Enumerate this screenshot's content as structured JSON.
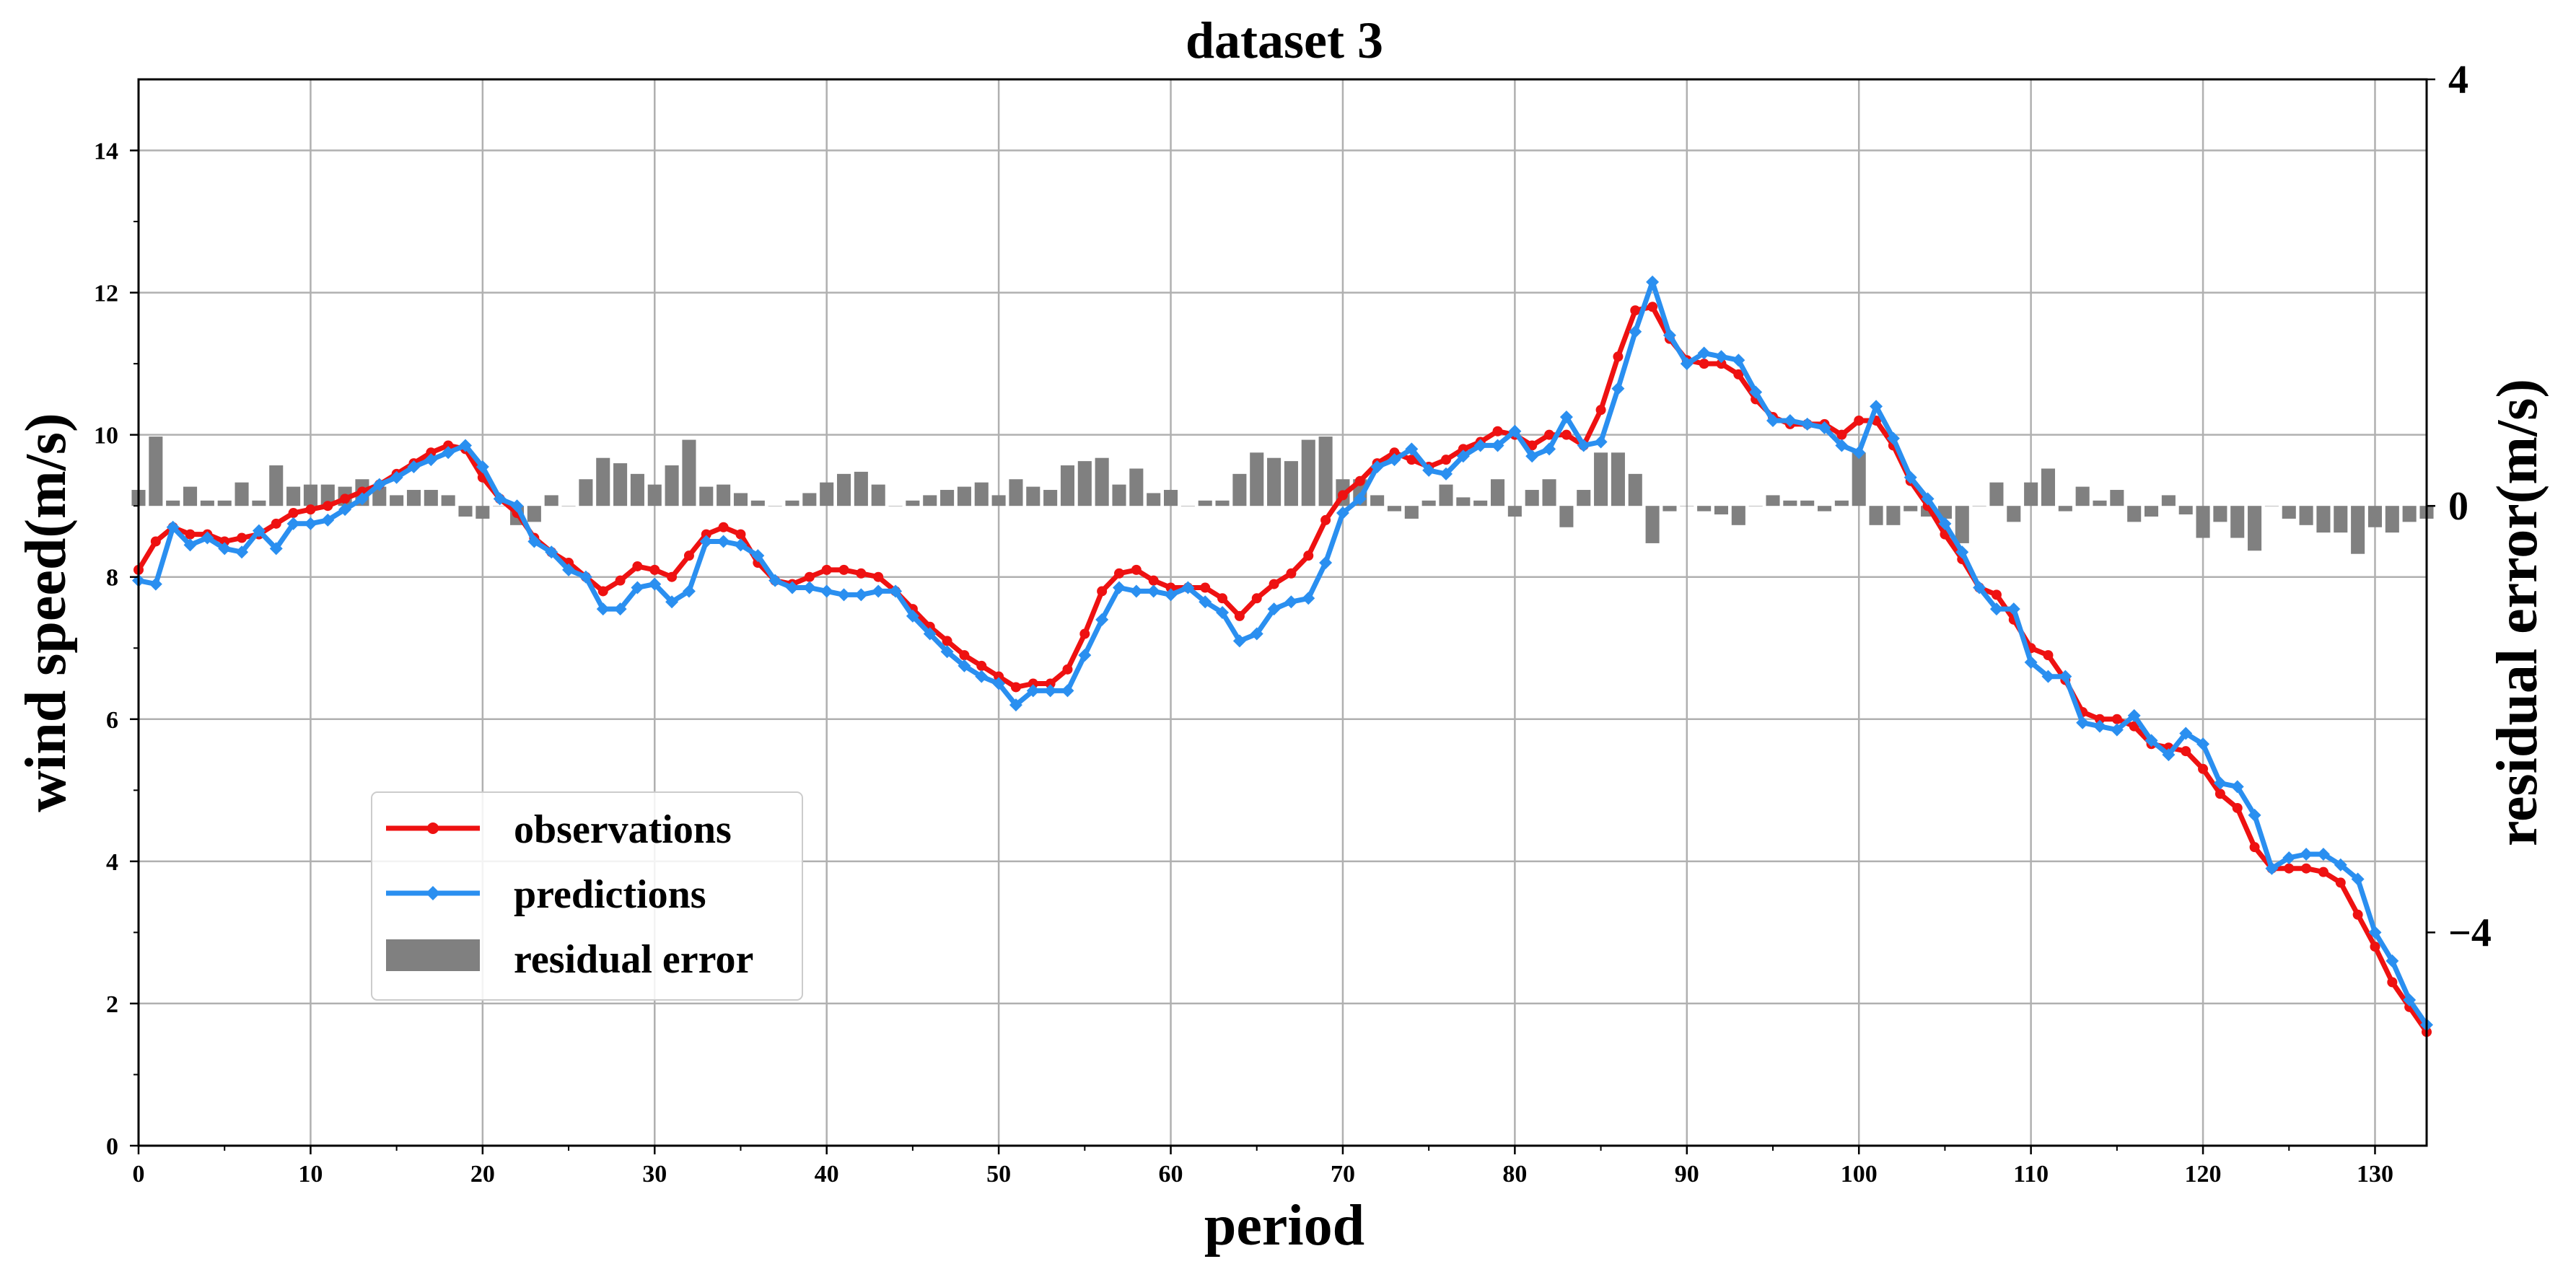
{
  "chart_data": {
    "type": "line",
    "title": "dataset 3",
    "xlabel": "period",
    "ylabel": "wind speed(m/s)",
    "y2label": "residual error(m/s)",
    "xlim": [
      0,
      133
    ],
    "ylim": [
      0,
      15
    ],
    "y2lim": [
      -6,
      4
    ],
    "xticks": [
      "0",
      "10",
      "20",
      "30",
      "40",
      "50",
      "60",
      "70",
      "80",
      "90",
      "100",
      "110",
      "120",
      "130"
    ],
    "yticks": [
      "0",
      "2",
      "4",
      "6",
      "8",
      "10",
      "12",
      "14"
    ],
    "y2ticks": [
      "−4",
      "0",
      "4"
    ],
    "grid": true,
    "legend_position": "lower-left",
    "x": [
      0,
      1,
      2,
      3,
      4,
      5,
      6,
      7,
      8,
      9,
      10,
      11,
      12,
      13,
      14,
      15,
      16,
      17,
      18,
      19,
      20,
      21,
      22,
      23,
      24,
      25,
      26,
      27,
      28,
      29,
      30,
      31,
      32,
      33,
      34,
      35,
      36,
      37,
      38,
      39,
      40,
      41,
      42,
      43,
      44,
      45,
      46,
      47,
      48,
      49,
      50,
      51,
      52,
      53,
      54,
      55,
      56,
      57,
      58,
      59,
      60,
      61,
      62,
      63,
      64,
      65,
      66,
      67,
      68,
      69,
      70,
      71,
      72,
      73,
      74,
      75,
      76,
      77,
      78,
      79,
      80,
      81,
      82,
      83,
      84,
      85,
      86,
      87,
      88,
      89,
      90,
      91,
      92,
      93,
      94,
      95,
      96,
      97,
      98,
      99,
      100,
      101,
      102,
      103,
      104,
      105,
      106,
      107,
      108,
      109,
      110,
      111,
      112,
      113,
      114,
      115,
      116,
      117,
      118,
      119,
      120,
      121,
      122,
      123,
      124,
      125,
      126,
      127,
      128,
      129,
      130,
      131,
      132,
      133
    ],
    "series": [
      {
        "name": "observations",
        "color": "#ee1111",
        "marker": "circle",
        "values": [
          8.1,
          8.5,
          8.7,
          8.6,
          8.6,
          8.5,
          8.55,
          8.6,
          8.75,
          8.9,
          8.95,
          9.0,
          9.1,
          9.2,
          9.3,
          9.45,
          9.6,
          9.75,
          9.85,
          9.8,
          9.4,
          9.1,
          8.9,
          8.55,
          8.35,
          8.2,
          8.0,
          7.8,
          7.95,
          8.15,
          8.1,
          8.0,
          8.3,
          8.6,
          8.7,
          8.6,
          8.2,
          7.95,
          7.9,
          8.0,
          8.1,
          8.1,
          8.05,
          8.0,
          7.8,
          7.55,
          7.3,
          7.1,
          6.9,
          6.75,
          6.6,
          6.45,
          6.5,
          6.5,
          6.7,
          7.2,
          7.8,
          8.05,
          8.1,
          7.95,
          7.85,
          7.85,
          7.85,
          7.7,
          7.45,
          7.7,
          7.9,
          8.05,
          8.3,
          8.8,
          9.15,
          9.35,
          9.6,
          9.75,
          9.65,
          9.55,
          9.65,
          9.8,
          9.9,
          10.05,
          10.0,
          9.85,
          10.0,
          10.0,
          9.85,
          10.35,
          11.1,
          11.75,
          11.8,
          11.35,
          11.05,
          11.0,
          11.0,
          10.85,
          10.5,
          10.25,
          10.15,
          10.15,
          10.15,
          10.0,
          10.2,
          10.2,
          9.85,
          9.35,
          9.0,
          8.6,
          8.25,
          7.85,
          7.75,
          7.4,
          7.0,
          6.9,
          6.55,
          6.1,
          6.0,
          6.0,
          5.9,
          5.65,
          5.6,
          5.55,
          5.3,
          4.95,
          4.75,
          4.2,
          3.9,
          3.9,
          3.9,
          3.85,
          3.7,
          3.25,
          2.8,
          2.3,
          1.95,
          1.6
        ]
      },
      {
        "name": "predictions",
        "color": "#2a8ff0",
        "marker": "diamond",
        "values": [
          7.95,
          7.9,
          8.7,
          8.45,
          8.55,
          8.4,
          8.35,
          8.65,
          8.4,
          8.75,
          8.75,
          8.8,
          8.95,
          9.1,
          9.3,
          9.4,
          9.55,
          9.65,
          9.75,
          9.85,
          9.55,
          9.1,
          9.0,
          8.5,
          8.35,
          8.1,
          8.0,
          7.55,
          7.55,
          7.85,
          7.9,
          7.65,
          7.8,
          8.5,
          8.5,
          8.45,
          8.3,
          7.95,
          7.85,
          7.85,
          7.8,
          7.75,
          7.75,
          7.8,
          7.8,
          7.45,
          7.2,
          6.95,
          6.75,
          6.6,
          6.5,
          6.2,
          6.4,
          6.4,
          6.4,
          6.9,
          7.4,
          7.85,
          7.8,
          7.8,
          7.75,
          7.85,
          7.65,
          7.5,
          7.1,
          7.2,
          7.55,
          7.65,
          7.7,
          8.2,
          8.9,
          9.1,
          9.55,
          9.65,
          9.8,
          9.5,
          9.45,
          9.7,
          9.85,
          9.85,
          10.05,
          9.7,
          9.8,
          10.25,
          9.85,
          9.9,
          10.65,
          11.45,
          12.15,
          11.4,
          11.0,
          11.15,
          11.1,
          11.05,
          10.6,
          10.2,
          10.2,
          10.15,
          10.1,
          9.85,
          9.75,
          10.4,
          9.95,
          9.4,
          9.1,
          8.75,
          8.35,
          7.85,
          7.55,
          7.55,
          6.8,
          6.6,
          6.6,
          5.95,
          5.9,
          5.85,
          6.05,
          5.7,
          5.5,
          5.8,
          5.65,
          5.1,
          5.05,
          4.65,
          3.9,
          4.05,
          4.1,
          4.1,
          3.95,
          3.75,
          3.0,
          2.6,
          2.05,
          1.7
        ]
      },
      {
        "name": "residual error",
        "color": "#808080",
        "type": "bar",
        "axis": "right",
        "values": [
          0.15,
          0.65,
          0.05,
          0.18,
          0.05,
          0.05,
          0.22,
          0.05,
          0.38,
          0.18,
          0.2,
          0.2,
          0.18,
          0.25,
          0.18,
          0.1,
          0.15,
          0.15,
          0.1,
          -0.1,
          -0.12,
          0.0,
          -0.18,
          -0.15,
          0.1,
          0.0,
          0.25,
          0.45,
          0.4,
          0.3,
          0.2,
          0.38,
          0.62,
          0.18,
          0.2,
          0.12,
          0.05,
          0.0,
          0.05,
          0.12,
          0.22,
          0.3,
          0.32,
          0.2,
          0.0,
          0.05,
          0.1,
          0.15,
          0.18,
          0.22,
          0.1,
          0.25,
          0.18,
          0.15,
          0.38,
          0.42,
          0.45,
          0.2,
          0.35,
          0.12,
          0.15,
          0.0,
          0.05,
          0.05,
          0.3,
          0.5,
          0.45,
          0.42,
          0.62,
          0.65,
          0.25,
          0.25,
          0.1,
          -0.05,
          -0.12,
          0.05,
          0.2,
          0.08,
          0.05,
          0.25,
          -0.1,
          0.15,
          0.25,
          -0.2,
          0.15,
          0.5,
          0.5,
          0.3,
          -0.35,
          -0.05,
          0.0,
          -0.05,
          -0.08,
          -0.18,
          0.0,
          0.1,
          0.05,
          0.05,
          -0.05,
          0.05,
          0.5,
          -0.18,
          -0.18,
          -0.05,
          -0.1,
          -0.12,
          -0.35,
          0.0,
          0.22,
          -0.15,
          0.22,
          0.35,
          -0.05,
          0.18,
          0.05,
          0.15,
          -0.15,
          -0.1,
          0.1,
          -0.08,
          -0.3,
          -0.15,
          -0.3,
          -0.42,
          0.0,
          -0.12,
          -0.18,
          -0.25,
          -0.25,
          -0.45,
          -0.2,
          -0.25,
          -0.15,
          -0.12
        ]
      }
    ]
  }
}
